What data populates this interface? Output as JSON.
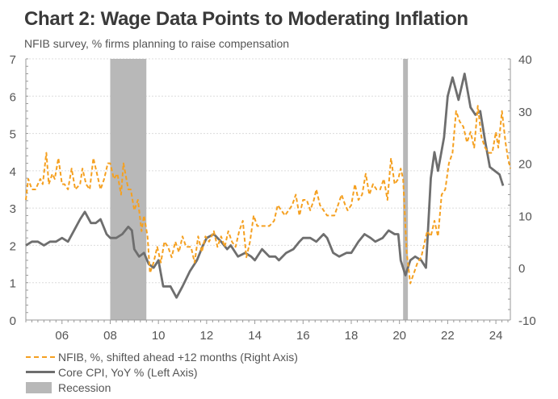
{
  "header": {
    "title": "Chart 2: Wage Data Points to Moderating Inflation",
    "subtitle": "NFIB survey, % firms planning to raise compensation"
  },
  "legend": [
    {
      "label": "NFIB, %, shifted ahead +12 months (Right Axis)",
      "style": "dashed",
      "color": "#f5a020"
    },
    {
      "label": "Core CPI, YoY % (Left Axis)",
      "style": "solid",
      "color": "#6e6e6e"
    },
    {
      "label": "Recession",
      "style": "box",
      "color": "#b8b8b8"
    }
  ],
  "chart_data": {
    "type": "line",
    "title": "Chart 2: Wage Data Points to Moderating Inflation",
    "subtitle": "NFIB survey, % firms planning to raise compensation",
    "xlabel": "",
    "x_range": [
      2004.5,
      2024.6
    ],
    "x_ticks": [
      2006,
      2008,
      2010,
      2012,
      2014,
      2016,
      2018,
      2020,
      2022,
      2024
    ],
    "x_tick_labels": [
      "06",
      "08",
      "10",
      "12",
      "14",
      "16",
      "18",
      "20",
      "22",
      "24"
    ],
    "left_axis": {
      "ylim": [
        0,
        7
      ],
      "ticks": [
        0,
        1,
        2,
        3,
        4,
        5,
        6,
        7
      ],
      "label": "Core CPI, YoY %"
    },
    "right_axis": {
      "ylim": [
        -10,
        40
      ],
      "ticks": [
        -10,
        0,
        10,
        20,
        30,
        40
      ],
      "label": "NFIB, %"
    },
    "grid": true,
    "legend_position": "bottom-left",
    "recessions": [
      [
        2008.0,
        2009.5
      ],
      [
        2020.15,
        2020.35
      ]
    ],
    "series": [
      {
        "name": "Core CPI, YoY % (Left Axis)",
        "axis": "left",
        "color": "#6e6e6e",
        "points": [
          [
            2004.5,
            2.0
          ],
          [
            2004.75,
            2.1
          ],
          [
            2005.0,
            2.1
          ],
          [
            2005.25,
            2.0
          ],
          [
            2005.5,
            2.1
          ],
          [
            2005.75,
            2.1
          ],
          [
            2006.0,
            2.2
          ],
          [
            2006.25,
            2.1
          ],
          [
            2006.5,
            2.4
          ],
          [
            2006.75,
            2.7
          ],
          [
            2006.95,
            2.9
          ],
          [
            2007.2,
            2.6
          ],
          [
            2007.4,
            2.6
          ],
          [
            2007.6,
            2.7
          ],
          [
            2007.85,
            2.3
          ],
          [
            2008.0,
            2.2
          ],
          [
            2008.25,
            2.2
          ],
          [
            2008.5,
            2.3
          ],
          [
            2008.75,
            2.5
          ],
          [
            2008.9,
            2.4
          ],
          [
            2009.0,
            1.9
          ],
          [
            2009.2,
            1.7
          ],
          [
            2009.4,
            1.8
          ],
          [
            2009.6,
            1.5
          ],
          [
            2009.8,
            1.4
          ],
          [
            2010.0,
            1.6
          ],
          [
            2010.2,
            0.9
          ],
          [
            2010.5,
            0.9
          ],
          [
            2010.75,
            0.6
          ],
          [
            2011.0,
            0.9
          ],
          [
            2011.3,
            1.3
          ],
          [
            2011.6,
            1.6
          ],
          [
            2011.85,
            2.0
          ],
          [
            2012.0,
            2.2
          ],
          [
            2012.3,
            2.3
          ],
          [
            2012.6,
            2.1
          ],
          [
            2012.85,
            1.9
          ],
          [
            2013.0,
            2.0
          ],
          [
            2013.3,
            1.7
          ],
          [
            2013.6,
            1.8
          ],
          [
            2013.85,
            1.7
          ],
          [
            2014.0,
            1.6
          ],
          [
            2014.3,
            1.9
          ],
          [
            2014.6,
            1.7
          ],
          [
            2014.85,
            1.7
          ],
          [
            2015.0,
            1.6
          ],
          [
            2015.3,
            1.8
          ],
          [
            2015.6,
            1.9
          ],
          [
            2015.85,
            2.1
          ],
          [
            2016.0,
            2.2
          ],
          [
            2016.3,
            2.2
          ],
          [
            2016.55,
            2.1
          ],
          [
            2016.85,
            2.3
          ],
          [
            2017.0,
            2.2
          ],
          [
            2017.25,
            1.8
          ],
          [
            2017.5,
            1.7
          ],
          [
            2017.8,
            1.8
          ],
          [
            2018.0,
            1.8
          ],
          [
            2018.3,
            2.1
          ],
          [
            2018.55,
            2.3
          ],
          [
            2018.8,
            2.2
          ],
          [
            2019.0,
            2.1
          ],
          [
            2019.3,
            2.2
          ],
          [
            2019.55,
            2.4
          ],
          [
            2019.8,
            2.3
          ],
          [
            2019.95,
            2.3
          ],
          [
            2020.05,
            1.6
          ],
          [
            2020.25,
            1.2
          ],
          [
            2020.45,
            1.6
          ],
          [
            2020.65,
            1.7
          ],
          [
            2020.9,
            1.6
          ],
          [
            2021.1,
            1.4
          ],
          [
            2021.3,
            3.8
          ],
          [
            2021.45,
            4.5
          ],
          [
            2021.6,
            4.0
          ],
          [
            2021.85,
            4.9
          ],
          [
            2022.0,
            6.0
          ],
          [
            2022.2,
            6.5
          ],
          [
            2022.45,
            5.9
          ],
          [
            2022.7,
            6.6
          ],
          [
            2022.95,
            5.7
          ],
          [
            2023.15,
            5.5
          ],
          [
            2023.35,
            5.6
          ],
          [
            2023.55,
            4.8
          ],
          [
            2023.75,
            4.1
          ],
          [
            2023.95,
            4.0
          ],
          [
            2024.15,
            3.9
          ],
          [
            2024.3,
            3.6
          ]
        ]
      },
      {
        "name": "NFIB, %, shifted ahead +12 months (Right Axis)",
        "axis": "right",
        "color": "#f5a020",
        "points": [
          [
            2004.5,
            13
          ],
          [
            2004.6,
            17
          ],
          [
            2004.75,
            15
          ],
          [
            2004.9,
            15
          ],
          [
            2005.0,
            16
          ],
          [
            2005.1,
            17
          ],
          [
            2005.2,
            16
          ],
          [
            2005.35,
            22
          ],
          [
            2005.45,
            16
          ],
          [
            2005.6,
            18
          ],
          [
            2005.7,
            17
          ],
          [
            2005.85,
            21
          ],
          [
            2006.0,
            16
          ],
          [
            2006.1,
            16
          ],
          [
            2006.25,
            15
          ],
          [
            2006.4,
            19
          ],
          [
            2006.55,
            15
          ],
          [
            2006.75,
            16
          ],
          [
            2006.85,
            19
          ],
          [
            2007.0,
            16
          ],
          [
            2007.15,
            15
          ],
          [
            2007.3,
            21
          ],
          [
            2007.45,
            18
          ],
          [
            2007.6,
            15
          ],
          [
            2007.75,
            17
          ],
          [
            2007.9,
            20
          ],
          [
            2008.0,
            20
          ],
          [
            2008.15,
            17
          ],
          [
            2008.3,
            18
          ],
          [
            2008.45,
            14
          ],
          [
            2008.55,
            20
          ],
          [
            2008.75,
            15
          ],
          [
            2008.85,
            15
          ],
          [
            2009.0,
            11
          ],
          [
            2009.15,
            13
          ],
          [
            2009.3,
            7
          ],
          [
            2009.4,
            10
          ],
          [
            2009.55,
            6
          ],
          [
            2009.65,
            -1
          ],
          [
            2009.8,
            1
          ],
          [
            2009.95,
            4
          ],
          [
            2010.1,
            1
          ],
          [
            2010.25,
            5
          ],
          [
            2010.4,
            4
          ],
          [
            2010.55,
            2
          ],
          [
            2010.7,
            5
          ],
          [
            2010.85,
            3
          ],
          [
            2011.0,
            6
          ],
          [
            2011.15,
            4
          ],
          [
            2011.35,
            4
          ],
          [
            2011.5,
            1
          ],
          [
            2011.65,
            6
          ],
          [
            2011.8,
            3
          ],
          [
            2011.95,
            6
          ],
          [
            2012.1,
            5
          ],
          [
            2012.3,
            7
          ],
          [
            2012.45,
            4
          ],
          [
            2012.6,
            6
          ],
          [
            2012.75,
            4
          ],
          [
            2012.9,
            7
          ],
          [
            2013.05,
            5
          ],
          [
            2013.2,
            4
          ],
          [
            2013.35,
            7
          ],
          [
            2013.5,
            9
          ],
          [
            2013.65,
            2
          ],
          [
            2013.8,
            5
          ],
          [
            2013.95,
            10
          ],
          [
            2014.1,
            8
          ],
          [
            2014.3,
            8
          ],
          [
            2014.45,
            8
          ],
          [
            2014.6,
            8
          ],
          [
            2014.8,
            9
          ],
          [
            2014.95,
            12
          ],
          [
            2015.1,
            11
          ],
          [
            2015.25,
            10
          ],
          [
            2015.4,
            11
          ],
          [
            2015.55,
            12
          ],
          [
            2015.7,
            14
          ],
          [
            2015.85,
            10
          ],
          [
            2016.0,
            13
          ],
          [
            2016.15,
            13
          ],
          [
            2016.3,
            11
          ],
          [
            2016.45,
            13
          ],
          [
            2016.55,
            15
          ],
          [
            2016.7,
            12
          ],
          [
            2016.85,
            11
          ],
          [
            2017.0,
            10
          ],
          [
            2017.15,
            10
          ],
          [
            2017.3,
            10
          ],
          [
            2017.45,
            12
          ],
          [
            2017.6,
            14
          ],
          [
            2017.75,
            12
          ],
          [
            2017.85,
            11
          ],
          [
            2018.0,
            12
          ],
          [
            2018.15,
            16
          ],
          [
            2018.3,
            13
          ],
          [
            2018.45,
            14
          ],
          [
            2018.6,
            18
          ],
          [
            2018.75,
            14
          ],
          [
            2018.9,
            16
          ],
          [
            2019.05,
            15
          ],
          [
            2019.2,
            15
          ],
          [
            2019.35,
            17
          ],
          [
            2019.5,
            13
          ],
          [
            2019.65,
            21
          ],
          [
            2019.8,
            16
          ],
          [
            2019.95,
            17
          ],
          [
            2020.05,
            19
          ],
          [
            2020.15,
            17
          ],
          [
            2020.3,
            3
          ],
          [
            2020.45,
            -3
          ],
          [
            2020.6,
            -1
          ],
          [
            2020.75,
            1
          ],
          [
            2020.9,
            2
          ],
          [
            2021.05,
            5
          ],
          [
            2021.15,
            7
          ],
          [
            2021.3,
            6
          ],
          [
            2021.45,
            9
          ],
          [
            2021.6,
            6
          ],
          [
            2021.75,
            14
          ],
          [
            2021.9,
            15
          ],
          [
            2022.05,
            20
          ],
          [
            2022.2,
            22
          ],
          [
            2022.35,
            30
          ],
          [
            2022.5,
            28
          ],
          [
            2022.65,
            27
          ],
          [
            2022.8,
            24
          ],
          [
            2022.95,
            26
          ],
          [
            2023.1,
            23
          ],
          [
            2023.25,
            31
          ],
          [
            2023.4,
            25
          ],
          [
            2023.55,
            23
          ],
          [
            2023.7,
            22
          ],
          [
            2023.85,
            22
          ],
          [
            2024.0,
            26
          ],
          [
            2024.1,
            23
          ],
          [
            2024.25,
            30
          ],
          [
            2024.4,
            24
          ],
          [
            2024.5,
            21
          ],
          [
            2024.6,
            19
          ]
        ]
      }
    ]
  }
}
